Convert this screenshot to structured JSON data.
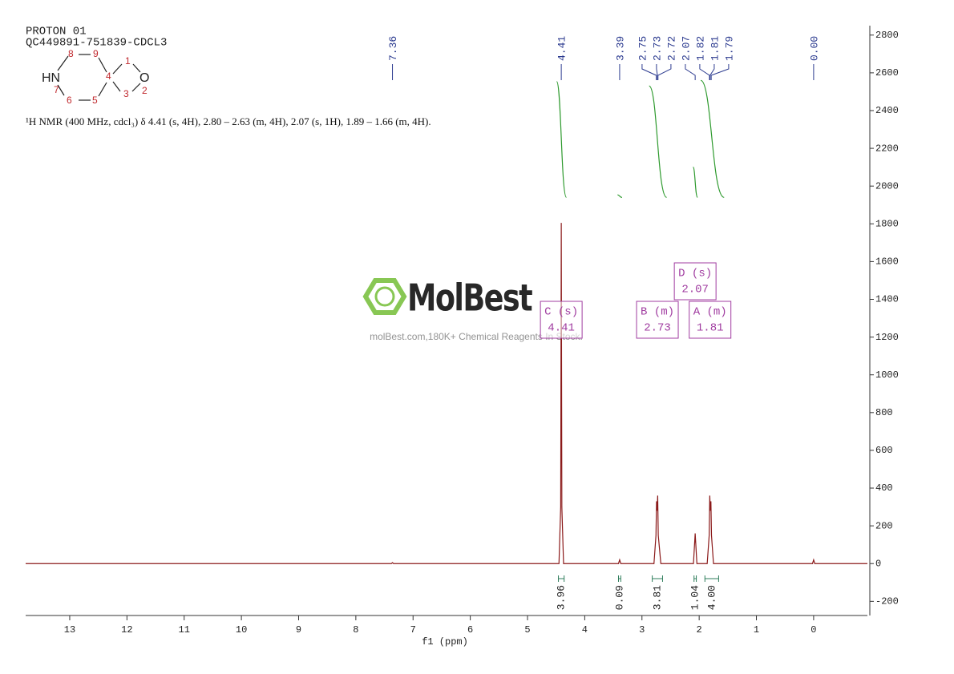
{
  "header": {
    "title": "PROTON 01",
    "subtitle": "QC449891-751839-CDCL3"
  },
  "structure": {
    "atoms": [
      "HN",
      "O"
    ],
    "locants": [
      "1",
      "2",
      "3",
      "4",
      "5",
      "6",
      "7",
      "8",
      "9"
    ]
  },
  "description": "¹H NMR (400 MHz, cdcl₃) δ 4.41 (s, 4H), 2.80 – 2.63 (m, 4H), 2.07 (s, 1H), 1.89 – 1.66 (m, 4H).",
  "watermark": {
    "brand": "MolBest",
    "tagline": "molBest.com,180K+ Chemical Reagents In Stock."
  },
  "chart_data": {
    "type": "line",
    "xlabel": "f1 (ppm)",
    "xlim": [
      13.77,
      -0.94
    ],
    "ylim": [
      -275,
      2850
    ],
    "xticks": [
      13,
      12,
      11,
      10,
      9,
      8,
      7,
      6,
      5,
      4,
      3,
      2,
      1,
      0
    ],
    "yticks": [
      -200,
      0,
      200,
      400,
      600,
      800,
      1000,
      1200,
      1400,
      1600,
      1800,
      2000,
      2200,
      2400,
      2600,
      2800
    ],
    "color": "#8b1a1a",
    "x": [
      13.77,
      7.38,
      7.36,
      7.34,
      4.45,
      4.42,
      4.41,
      4.4,
      4.37,
      3.41,
      3.39,
      3.37,
      2.79,
      2.755,
      2.745,
      2.735,
      2.725,
      2.715,
      2.67,
      2.1,
      2.07,
      2.04,
      1.86,
      1.825,
      1.815,
      1.805,
      1.795,
      1.785,
      1.75,
      0.02,
      0.0,
      -0.02,
      -0.94
    ],
    "values": [
      0,
      0,
      5,
      0,
      0,
      300,
      1805,
      300,
      0,
      0,
      20,
      0,
      0,
      150,
      330,
      280,
      360,
      150,
      0,
      0,
      160,
      0,
      0,
      150,
      360,
      280,
      330,
      150,
      0,
      0,
      20,
      0,
      0
    ],
    "peaks": [
      7.36,
      4.41,
      3.39,
      2.75,
      2.73,
      2.72,
      2.07,
      1.82,
      1.81,
      1.79,
      {
        "value": 0,
        "label": "0.00"
      }
    ],
    "peak_color": "#2b3a8f",
    "integrals": [
      3.96,
      0.09,
      3.81,
      1.04,
      {
        "value": 4,
        "label": "4.00"
      }
    ],
    "integral_ranges": [
      [
        4.46,
        4.36
      ],
      [
        3.41,
        3.37
      ],
      [
        2.82,
        2.64
      ],
      [
        2.09,
        2.05
      ],
      [
        1.9,
        1.66
      ]
    ],
    "integral_color": "#2e9a2e",
    "multiplets": [
      {
        "label": "C (s)",
        "shift": 4.41
      },
      {
        "label": "B (m)",
        "shift": 2.73
      },
      {
        "label": "D (s)",
        "shift": 2.07
      },
      {
        "label": "A (m)",
        "shift": 1.81
      }
    ],
    "multiplet_color": "#a03ca0"
  }
}
